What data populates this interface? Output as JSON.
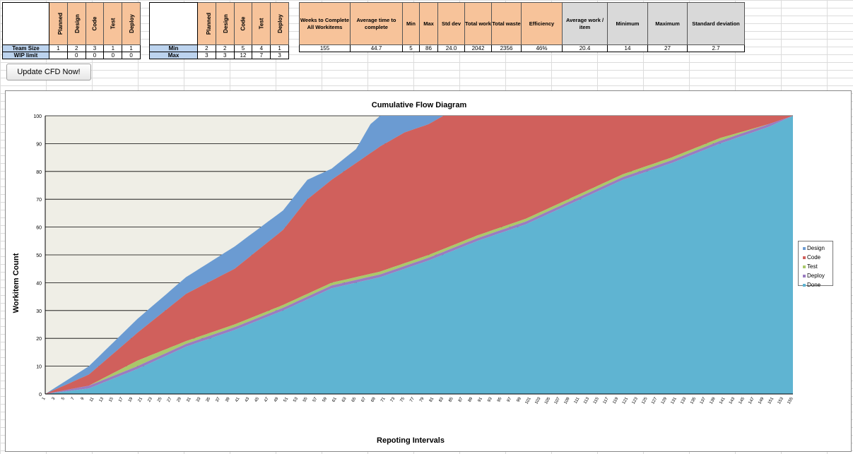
{
  "stage_table": {
    "headers": [
      "Planned",
      "Design",
      "Code",
      "Test",
      "Deploy"
    ],
    "rows": [
      {
        "label": "Team Size",
        "values": [
          "1",
          "2",
          "3",
          "1",
          "1"
        ]
      },
      {
        "label": "WIP limit",
        "values": [
          "",
          "0",
          "0",
          "0",
          "0"
        ]
      }
    ]
  },
  "range_table": {
    "headers": [
      "Planned",
      "Design",
      "Code",
      "Test",
      "Deploy"
    ],
    "rows": [
      {
        "label": "Min",
        "values": [
          "2",
          "2",
          "5",
          "4",
          "1"
        ]
      },
      {
        "label": "Max",
        "values": [
          "3",
          "3",
          "12",
          "7",
          "3"
        ]
      }
    ]
  },
  "stats_table": {
    "headers": [
      "Weeks to Complete All Workitems",
      "Average time to complete",
      "Min",
      "Max",
      "Std dev",
      "Total work",
      "Total waste",
      "Efficiency",
      "Average work / item",
      "Minimum",
      "Maximum",
      "Standard deviation"
    ],
    "values": [
      "155",
      "44.7",
      "5",
      "86",
      "24.0",
      "2042",
      "2356",
      "46%",
      "20.4",
      "14",
      "27",
      "2.7"
    ]
  },
  "update_button": "Update CFD Now!",
  "colors": {
    "design": "#6b9bd2",
    "code": "#d0605c",
    "test": "#a9c86a",
    "deploy": "#9a7cc0",
    "done": "#5fb4d2",
    "plot_bg": "#efeee6",
    "header_orange": "#f7c39a",
    "label_blue": "#bcd3ee",
    "stat_grey": "#d9d9d9"
  },
  "chart_data": {
    "type": "area",
    "stacked": true,
    "title": "Cumulative Flow Diagram",
    "xlabel": "Repoting Intervals",
    "ylabel": "Workitem Count",
    "ylim": [
      0,
      100
    ],
    "yticks": [
      0,
      10,
      20,
      30,
      40,
      50,
      60,
      70,
      80,
      90,
      100
    ],
    "x_range": [
      1,
      155
    ],
    "x_tick_labels": [
      "1",
      "3",
      "5",
      "7",
      "9",
      "11",
      "13",
      "15",
      "17",
      "19",
      "21",
      "23",
      "25",
      "27",
      "29",
      "31",
      "33",
      "35",
      "37",
      "39",
      "41",
      "43",
      "45",
      "47",
      "49",
      "51",
      "53",
      "55",
      "57",
      "59",
      "61",
      "63",
      "65",
      "67",
      "69",
      "71",
      "73",
      "75",
      "77",
      "79",
      "81",
      "83",
      "85",
      "87",
      "89",
      "91",
      "93",
      "95",
      "97",
      "99",
      "101",
      "103",
      "105",
      "107",
      "109",
      "111",
      "113",
      "115",
      "117",
      "119",
      "121",
      "123",
      "125",
      "127",
      "129",
      "131",
      "133",
      "135",
      "137",
      "139",
      "141",
      "143",
      "145",
      "147",
      "149",
      "151",
      "153",
      "155"
    ],
    "legend": [
      "Design",
      "Code",
      "Test",
      "Deploy",
      "Done"
    ],
    "legend_position": "right",
    "series_cumulative_top": [
      {
        "name": "Design",
        "x": [
          1,
          10,
          20,
          30,
          40,
          50,
          55,
          60,
          65,
          68,
          70,
          155
        ],
        "y": [
          0,
          10,
          27,
          42,
          53,
          66,
          77,
          81,
          88,
          97,
          100,
          100
        ]
      },
      {
        "name": "Code",
        "x": [
          1,
          10,
          20,
          30,
          40,
          50,
          55,
          60,
          65,
          70,
          75,
          80,
          83,
          155
        ],
        "y": [
          0,
          7,
          22,
          36,
          45,
          59,
          70,
          77,
          83,
          89,
          94,
          97,
          100,
          100
        ]
      },
      {
        "name": "Test",
        "x": [
          1,
          10,
          20,
          30,
          40,
          50,
          60,
          70,
          80,
          90,
          100,
          110,
          120,
          130,
          140,
          150,
          155
        ],
        "y": [
          0,
          3,
          12,
          19,
          25,
          32,
          40,
          44,
          50,
          57,
          63,
          71,
          79,
          85,
          92,
          97,
          100
        ]
      },
      {
        "name": "Deploy",
        "x": [
          1,
          10,
          20,
          30,
          40,
          50,
          60,
          70,
          80,
          90,
          100,
          110,
          120,
          130,
          140,
          150,
          155
        ],
        "y": [
          0,
          3,
          10,
          18,
          24,
          31,
          39,
          43,
          49,
          56,
          62,
          70,
          78,
          84,
          91,
          97,
          100
        ]
      },
      {
        "name": "Done",
        "x": [
          1,
          10,
          20,
          30,
          40,
          50,
          60,
          70,
          80,
          90,
          100,
          110,
          120,
          130,
          140,
          150,
          155
        ],
        "y": [
          0,
          2,
          9,
          17,
          23,
          30,
          38,
          42,
          48,
          55,
          61,
          69,
          77,
          83,
          90,
          96,
          100
        ]
      }
    ]
  }
}
